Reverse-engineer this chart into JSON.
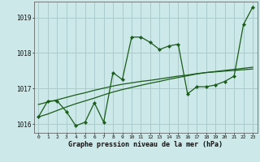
{
  "xlabel": "Graphe pression niveau de la mer (hPa)",
  "background_color": "#cce8e8",
  "grid_color": "#aacccc",
  "line_color": "#1a5c1a",
  "marker_color": "#1a5c1a",
  "ylim": [
    1015.75,
    1019.45
  ],
  "yticks": [
    1016,
    1017,
    1018,
    1019
  ],
  "xticks": [
    0,
    1,
    2,
    3,
    4,
    5,
    6,
    7,
    8,
    9,
    10,
    11,
    12,
    13,
    14,
    15,
    16,
    17,
    18,
    19,
    20,
    21,
    22,
    23
  ],
  "series_main": [
    1016.2,
    1016.65,
    1016.65,
    1016.35,
    1015.95,
    1016.05,
    1016.6,
    1016.05,
    1017.45,
    1017.25,
    1018.45,
    1018.45,
    1018.3,
    1018.1,
    1018.2,
    1018.25,
    1016.85,
    1017.05,
    1017.05,
    1017.1,
    1017.2,
    1017.35,
    1018.8,
    1019.3
  ],
  "series_trend1": [
    1016.55,
    1016.62,
    1016.68,
    1016.75,
    1016.82,
    1016.88,
    1016.95,
    1017.01,
    1017.07,
    1017.12,
    1017.16,
    1017.2,
    1017.23,
    1017.27,
    1017.31,
    1017.35,
    1017.38,
    1017.42,
    1017.45,
    1017.47,
    1017.49,
    1017.51,
    1017.53,
    1017.55
  ],
  "series_trend2": [
    1016.2,
    1016.28,
    1016.38,
    1016.48,
    1016.57,
    1016.65,
    1016.73,
    1016.82,
    1016.9,
    1016.97,
    1017.03,
    1017.09,
    1017.15,
    1017.2,
    1017.26,
    1017.31,
    1017.36,
    1017.41,
    1017.45,
    1017.48,
    1017.51,
    1017.54,
    1017.57,
    1017.6
  ]
}
